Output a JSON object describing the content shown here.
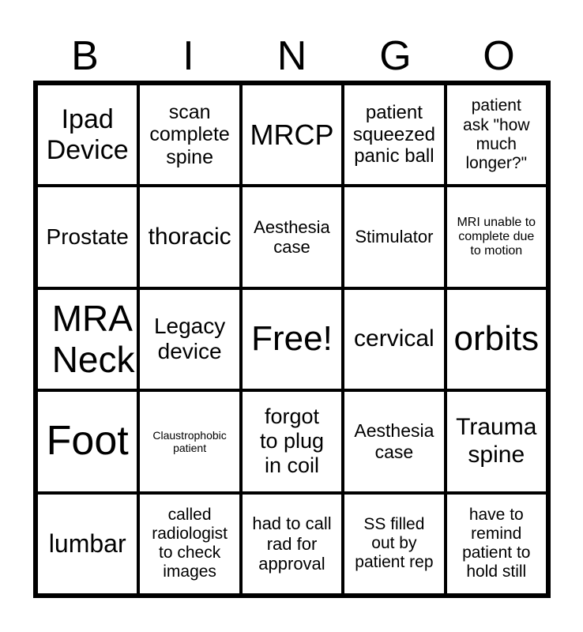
{
  "header": [
    "B",
    "I",
    "N",
    "G",
    "O"
  ],
  "cells": [
    "Ipad Device",
    "scan complete spine",
    "MRCP",
    "patient squeezed panic ball",
    "patient ask \"how much longer?\"",
    "Prostate",
    "thoracic",
    "Aesthesia case",
    "Stimulator",
    "MRI unable to complete due to motion",
    "MRA Neck",
    "Legacy device",
    "Free!",
    "cervical",
    "orbits",
    "Foot",
    "Claustrophobic patient",
    "forgot to plug in coil",
    "Aesthesia case",
    "Trauma spine",
    "lumbar",
    "called radiologist to check images",
    "had to call rad for approval",
    "SS filled out by patient rep",
    "have to remind patient to hold still"
  ]
}
